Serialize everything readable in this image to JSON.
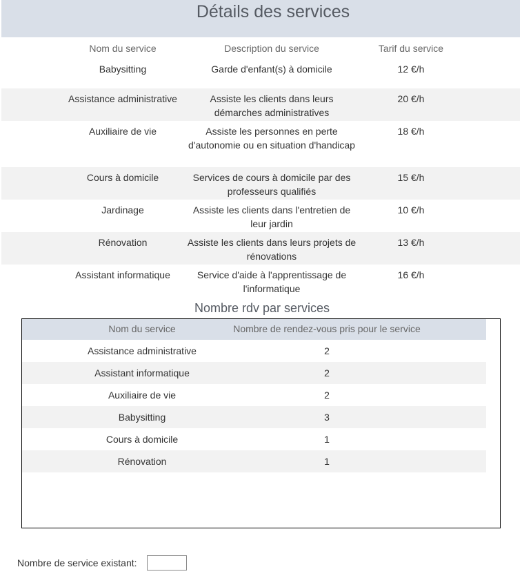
{
  "page": {
    "title": "Détails des services"
  },
  "services_table": {
    "headers": {
      "name": "Nom du service",
      "description": "Description du service",
      "price": "Tarif du service"
    },
    "rows": [
      {
        "name": "Babysitting",
        "description": "Garde d'enfant(s) à domicile",
        "price": "12 €/h"
      },
      {
        "name": "Assistance administrative",
        "description": "Assiste les clients dans leurs démarches administratives",
        "price": "20 €/h"
      },
      {
        "name": "Auxiliaire de vie",
        "description": "Assiste les personnes en perte d'autonomie ou en situation d'handicap",
        "price": "18 €/h"
      },
      {
        "name": "Cours à domicile",
        "description": "Services de cours à domicile par des professeurs qualifiés",
        "price": "15 €/h"
      },
      {
        "name": "Jardinage",
        "description": "Assiste les clients dans l'entretien de leur jardin",
        "price": "10 €/h"
      },
      {
        "name": "Rénovation",
        "description": "Assiste les clients dans leurs projets de rénovations",
        "price": "13 €/h"
      },
      {
        "name": "Assistant informatique",
        "description": "Service d'aide à l'apprentissage de l'informatique",
        "price": "16 €/h"
      }
    ]
  },
  "appointments": {
    "title": "Nombre rdv par services",
    "headers": {
      "name": "Nom du service",
      "count": "Nombre de rendez-vous pris pour le service"
    },
    "rows": [
      {
        "name": "Assistance administrative",
        "count": "2"
      },
      {
        "name": "Assistant informatique",
        "count": "2"
      },
      {
        "name": "Auxiliaire de vie",
        "count": "2"
      },
      {
        "name": "Babysitting",
        "count": "3"
      },
      {
        "name": "Cours à domicile",
        "count": "1"
      },
      {
        "name": "Rénovation",
        "count": "1"
      }
    ]
  },
  "footer": {
    "label": "Nombre de service existant:",
    "value": ""
  }
}
